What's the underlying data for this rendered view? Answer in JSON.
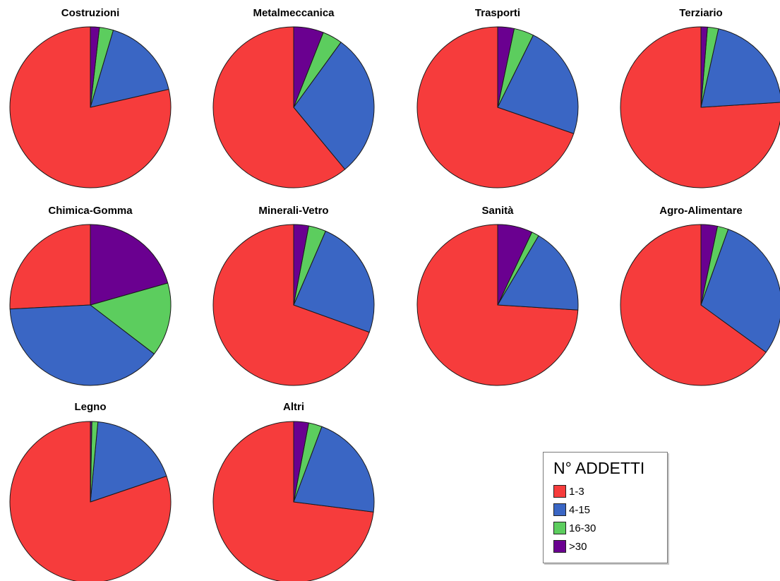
{
  "chart_data": {
    "type": "pie",
    "legend": {
      "title": "N° ADDETTI",
      "entries": [
        "1-3",
        "4-15",
        "16-30",
        ">30"
      ],
      "placement": "bottom-right"
    },
    "colors": [
      "#f63c3c",
      "#3a66c4",
      "#5ccd5e",
      "#6a0090"
    ],
    "start_angle_deg": 90,
    "direction": "counterclockwise",
    "pies": [
      {
        "title": "Costruzioni",
        "values": [
          78.6,
          16.8,
          2.8,
          1.8
        ]
      },
      {
        "title": "Metalmeccanica",
        "values": [
          61.0,
          29.0,
          4.0,
          6.0
        ]
      },
      {
        "title": "Trasporti",
        "values": [
          69.7,
          23.0,
          4.0,
          3.3
        ]
      },
      {
        "title": "Terziario",
        "values": [
          76.0,
          20.5,
          2.2,
          1.3
        ]
      },
      {
        "title": "Chimica-Gomma",
        "values": [
          25.8,
          38.8,
          14.8,
          20.6
        ]
      },
      {
        "title": "Minerali-Vetro",
        "values": [
          69.5,
          24.0,
          3.5,
          3.0
        ]
      },
      {
        "title": "Sanità",
        "values": [
          74.0,
          17.5,
          1.5,
          7.0
        ]
      },
      {
        "title": "Agro-Alimentare",
        "values": [
          65.0,
          29.5,
          2.2,
          3.3
        ]
      },
      {
        "title": "Legno",
        "values": [
          80.2,
          18.3,
          1.2,
          0.3
        ]
      },
      {
        "title": "Altri",
        "values": [
          73.0,
          21.3,
          2.7,
          3.0
        ]
      }
    ]
  }
}
